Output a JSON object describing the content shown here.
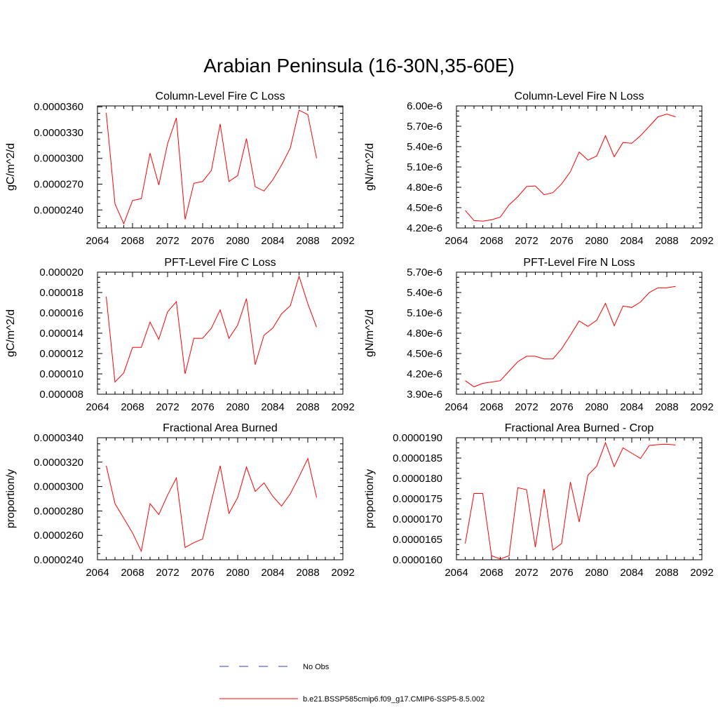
{
  "page": {
    "title": "Arabian Peninsula (16-30N,35-60E)"
  },
  "legend": [
    {
      "label": "No Obs",
      "color": "#3b3bc8",
      "dash": "dashed"
    },
    {
      "label": "b.e21.BSSP585cmip6.f09_g17.CMIP6-SSP5-8.5.002",
      "color": "#ff0000",
      "dash": "solid"
    }
  ],
  "chart_data": [
    {
      "type": "line",
      "title": "Column-Level Fire C Loss",
      "ylabel": "gC/m^2/d",
      "xlim": [
        2064,
        2092
      ],
      "ylim": [
        2.19e-05,
        3.61e-05
      ],
      "x_ticks": [
        "2064",
        "2068",
        "2072",
        "2076",
        "2080",
        "2084",
        "2088",
        "2092"
      ],
      "y_ticks": [
        {
          "value": 2.4e-05,
          "label": "0.0000240"
        },
        {
          "value": 2.7e-05,
          "label": "0.0000270"
        },
        {
          "value": 3e-05,
          "label": "0.0000300"
        },
        {
          "value": 3.3e-05,
          "label": "0.0000330"
        },
        {
          "value": 3.6e-05,
          "label": "0.0000360"
        }
      ],
      "series": [
        {
          "name": "b.e21.BSSP585cmip6.f09_g17.CMIP6-SSP5-8.5.002",
          "color": "#ff0000",
          "x": [
            2065,
            2066,
            2067,
            2068,
            2069,
            2070,
            2071,
            2072,
            2073,
            2074,
            2075,
            2076,
            2077,
            2078,
            2079,
            2080,
            2081,
            2082,
            2083,
            2084,
            2085,
            2086,
            2087,
            2088,
            2089
          ],
          "y": [
            3.53e-05,
            2.47e-05,
            2.24e-05,
            2.51e-05,
            2.53e-05,
            3.06e-05,
            2.69e-05,
            3.17e-05,
            3.47e-05,
            2.29e-05,
            2.71e-05,
            2.73e-05,
            2.86e-05,
            3.4e-05,
            2.73e-05,
            2.8e-05,
            3.23e-05,
            2.67e-05,
            2.62e-05,
            2.75e-05,
            2.92e-05,
            3.12e-05,
            3.56e-05,
            3.51e-05,
            3e-05
          ]
        }
      ]
    },
    {
      "type": "line",
      "title": "Column-Level Fire N Loss",
      "ylabel": "gN/m^2/d",
      "xlim": [
        2064,
        2092
      ],
      "ylim": [
        4.2e-06,
        6e-06
      ],
      "x_ticks": [
        "2064",
        "2068",
        "2072",
        "2076",
        "2080",
        "2084",
        "2088",
        "2092"
      ],
      "y_ticks": [
        {
          "value": 4.2e-06,
          "label": "4.20e-6"
        },
        {
          "value": 4.5e-06,
          "label": "4.50e-6"
        },
        {
          "value": 4.8e-06,
          "label": "4.80e-6"
        },
        {
          "value": 5.1e-06,
          "label": "5.10e-6"
        },
        {
          "value": 5.4e-06,
          "label": "5.40e-6"
        },
        {
          "value": 5.7e-06,
          "label": "5.70e-6"
        },
        {
          "value": 6e-06,
          "label": "6.00e-6"
        }
      ],
      "series": [
        {
          "name": "b.e21.BSSP585cmip6.f09_g17.CMIP6-SSP5-8.5.002",
          "color": "#ff0000",
          "x": [
            2065,
            2066,
            2067,
            2068,
            2069,
            2070,
            2071,
            2072,
            2073,
            2074,
            2075,
            2076,
            2077,
            2078,
            2079,
            2080,
            2081,
            2082,
            2083,
            2084,
            2085,
            2086,
            2087,
            2088,
            2089
          ],
          "y": [
            4.46e-06,
            4.31e-06,
            4.3e-06,
            4.32e-06,
            4.36e-06,
            4.54e-06,
            4.66e-06,
            4.81e-06,
            4.82e-06,
            4.69e-06,
            4.72e-06,
            4.85e-06,
            5.03e-06,
            5.32e-06,
            5.2e-06,
            5.26e-06,
            5.56e-06,
            5.25e-06,
            5.46e-06,
            5.45e-06,
            5.56e-06,
            5.7e-06,
            5.84e-06,
            5.88e-06,
            5.84e-06
          ]
        }
      ]
    },
    {
      "type": "line",
      "title": "PFT-Level Fire C Loss",
      "ylabel": "gC/m^2/d",
      "xlim": [
        2064,
        2092
      ],
      "ylim": [
        8e-06,
        2e-05
      ],
      "x_ticks": [
        "2064",
        "2068",
        "2072",
        "2076",
        "2080",
        "2084",
        "2088",
        "2092"
      ],
      "y_ticks": [
        {
          "value": 8e-06,
          "label": "0.000008"
        },
        {
          "value": 1e-05,
          "label": "0.000010"
        },
        {
          "value": 1.2e-05,
          "label": "0.000012"
        },
        {
          "value": 1.4e-05,
          "label": "0.000014"
        },
        {
          "value": 1.6e-05,
          "label": "0.000016"
        },
        {
          "value": 1.8e-05,
          "label": "0.000018"
        },
        {
          "value": 2e-05,
          "label": "0.000020"
        }
      ],
      "series": [
        {
          "name": "b.e21.BSSP585cmip6.f09_g17.CMIP6-SSP5-8.5.002",
          "color": "#ff0000",
          "x": [
            2065,
            2066,
            2067,
            2068,
            2069,
            2070,
            2071,
            2072,
            2073,
            2074,
            2075,
            2076,
            2077,
            2078,
            2079,
            2080,
            2081,
            2082,
            2083,
            2084,
            2085,
            2086,
            2087,
            2088,
            2089
          ],
          "y": [
            1.76e-05,
            9.2e-06,
            1.01e-05,
            1.26e-05,
            1.26e-05,
            1.51e-05,
            1.34e-05,
            1.61e-05,
            1.71e-05,
            1e-05,
            1.35e-05,
            1.35e-05,
            1.45e-05,
            1.63e-05,
            1.35e-05,
            1.48e-05,
            1.74e-05,
            1.09e-05,
            1.38e-05,
            1.45e-05,
            1.59e-05,
            1.67e-05,
            1.96e-05,
            1.69e-05,
            1.46e-05
          ]
        }
      ]
    },
    {
      "type": "line",
      "title": "PFT-Level Fire N Loss",
      "ylabel": "gN/m^2/d",
      "xlim": [
        2064,
        2092
      ],
      "ylim": [
        3.9e-06,
        5.7e-06
      ],
      "x_ticks": [
        "2064",
        "2068",
        "2072",
        "2076",
        "2080",
        "2084",
        "2088",
        "2092"
      ],
      "y_ticks": [
        {
          "value": 3.9e-06,
          "label": "3.90e-6"
        },
        {
          "value": 4.2e-06,
          "label": "4.20e-6"
        },
        {
          "value": 4.5e-06,
          "label": "4.50e-6"
        },
        {
          "value": 4.8e-06,
          "label": "4.80e-6"
        },
        {
          "value": 5.1e-06,
          "label": "5.10e-6"
        },
        {
          "value": 5.4e-06,
          "label": "5.40e-6"
        },
        {
          "value": 5.7e-06,
          "label": "5.70e-6"
        }
      ],
      "series": [
        {
          "name": "b.e21.BSSP585cmip6.f09_g17.CMIP6-SSP5-8.5.002",
          "color": "#ff0000",
          "x": [
            2065,
            2066,
            2067,
            2068,
            2069,
            2070,
            2071,
            2072,
            2073,
            2074,
            2075,
            2076,
            2077,
            2078,
            2079,
            2080,
            2081,
            2082,
            2083,
            2084,
            2085,
            2086,
            2087,
            2088,
            2089
          ],
          "y": [
            4.1e-06,
            4.01e-06,
            4.06e-06,
            4.08e-06,
            4.1e-06,
            4.24e-06,
            4.38e-06,
            4.46e-06,
            4.46e-06,
            4.42e-06,
            4.42e-06,
            4.57e-06,
            4.77e-06,
            4.98e-06,
            4.9e-06,
            4.99e-06,
            5.24e-06,
            4.91e-06,
            5.2e-06,
            5.18e-06,
            5.26e-06,
            5.4e-06,
            5.47e-06,
            5.47e-06,
            5.49e-06
          ]
        }
      ]
    },
    {
      "type": "line",
      "title": "Fractional Area Burned",
      "ylabel": "proportion/y",
      "xlim": [
        2064,
        2092
      ],
      "ylim": [
        2.4e-05,
        3.4e-05
      ],
      "x_ticks": [
        "2064",
        "2068",
        "2072",
        "2076",
        "2080",
        "2084",
        "2088",
        "2092"
      ],
      "y_ticks": [
        {
          "value": 2.4e-05,
          "label": "0.0000240"
        },
        {
          "value": 2.6e-05,
          "label": "0.0000260"
        },
        {
          "value": 2.8e-05,
          "label": "0.0000280"
        },
        {
          "value": 3e-05,
          "label": "0.0000300"
        },
        {
          "value": 3.2e-05,
          "label": "0.0000320"
        },
        {
          "value": 3.4e-05,
          "label": "0.0000340"
        }
      ],
      "series": [
        {
          "name": "b.e21.BSSP585cmip6.f09_g17.CMIP6-SSP5-8.5.002",
          "color": "#ff0000",
          "x": [
            2065,
            2066,
            2067,
            2068,
            2069,
            2070,
            2071,
            2072,
            2073,
            2074,
            2075,
            2076,
            2077,
            2078,
            2079,
            2080,
            2081,
            2082,
            2083,
            2084,
            2085,
            2086,
            2087,
            2088,
            2089
          ],
          "y": [
            3.17e-05,
            2.86e-05,
            2.74e-05,
            2.62e-05,
            2.47e-05,
            2.86e-05,
            2.77e-05,
            2.93e-05,
            3.07e-05,
            2.5e-05,
            2.54e-05,
            2.57e-05,
            2.88e-05,
            3.17e-05,
            2.78e-05,
            2.91e-05,
            3.16e-05,
            2.96e-05,
            3.03e-05,
            2.92e-05,
            2.84e-05,
            2.94e-05,
            3.08e-05,
            3.23e-05,
            2.91e-05
          ]
        }
      ]
    },
    {
      "type": "line",
      "title": "Fractional Area Burned - Crop",
      "ylabel": "proportion/y",
      "xlim": [
        2064,
        2092
      ],
      "ylim": [
        1.6e-05,
        1.9e-05
      ],
      "x_ticks": [
        "2064",
        "2068",
        "2072",
        "2076",
        "2080",
        "2084",
        "2088",
        "2092"
      ],
      "y_ticks": [
        {
          "value": 1.6e-05,
          "label": "0.0000160"
        },
        {
          "value": 1.65e-05,
          "label": "0.0000165"
        },
        {
          "value": 1.7e-05,
          "label": "0.0000170"
        },
        {
          "value": 1.75e-05,
          "label": "0.0000175"
        },
        {
          "value": 1.8e-05,
          "label": "0.0000180"
        },
        {
          "value": 1.85e-05,
          "label": "0.0000185"
        },
        {
          "value": 1.9e-05,
          "label": "0.0000190"
        }
      ],
      "series": [
        {
          "name": "b.e21.BSSP585cmip6.f09_g17.CMIP6-SSP5-8.5.002",
          "color": "#ff0000",
          "x": [
            2065,
            2066,
            2067,
            2068,
            2069,
            2070,
            2071,
            2072,
            2073,
            2074,
            2075,
            2076,
            2077,
            2078,
            2079,
            2080,
            2081,
            2082,
            2083,
            2084,
            2085,
            2086,
            2087,
            2088,
            2089
          ],
          "y": [
            1.64e-05,
            1.763e-05,
            1.763e-05,
            1.61e-05,
            1.602e-05,
            1.61e-05,
            1.777e-05,
            1.772e-05,
            1.631e-05,
            1.774e-05,
            1.624e-05,
            1.64e-05,
            1.791e-05,
            1.693e-05,
            1.808e-05,
            1.83e-05,
            1.888e-05,
            1.829e-05,
            1.875e-05,
            1.862e-05,
            1.849e-05,
            1.881e-05,
            1.883e-05,
            1.884e-05,
            1.882e-05
          ]
        }
      ]
    }
  ]
}
